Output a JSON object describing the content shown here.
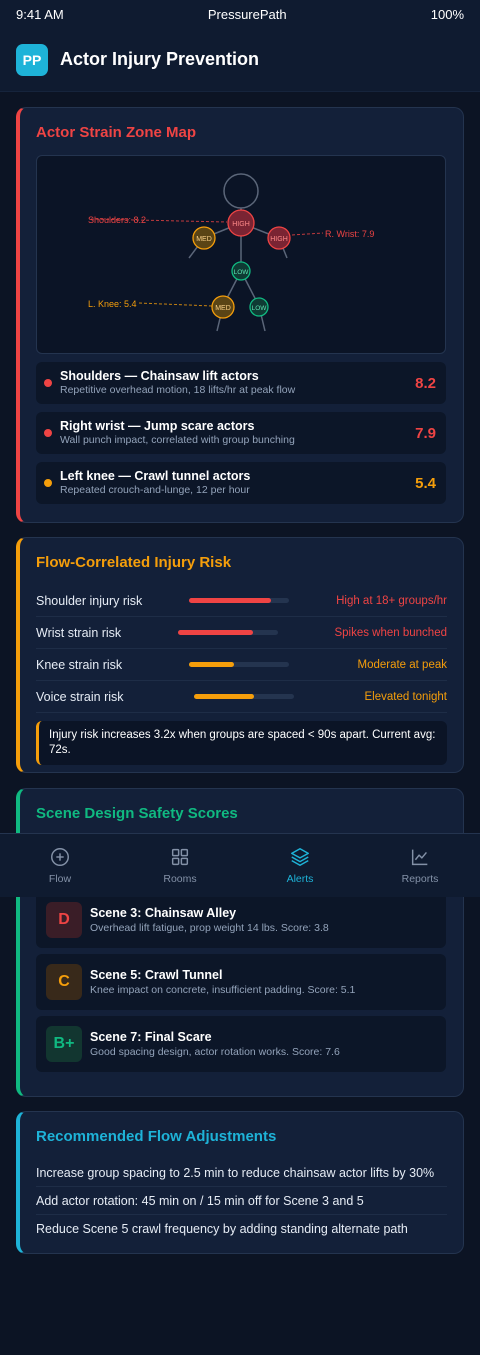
{
  "status_bar": {
    "time": "9:41 AM",
    "app": "PressurePath",
    "battery": "100%"
  },
  "header": {
    "logo": "PP",
    "title": "Actor Injury Prevention"
  },
  "strain_card": {
    "title": "Actor Strain Zone Map",
    "map_labels": {
      "shoulders": "Shoulders: 8.2",
      "wrist": "R. Wrist: 7.9",
      "knee": "L. Knee: 5.4",
      "high": "HIGH",
      "med": "MED",
      "low": "LOW"
    },
    "zones": [
      {
        "name": "Shoulders — Chainsaw lift actors",
        "desc": "Repetitive overhead motion, 18 lifts/hr at peak flow",
        "score": "8.2",
        "color": "#ef4444"
      },
      {
        "name": "Right wrist — Jump scare actors",
        "desc": "Wall punch impact, correlated with group bunching",
        "score": "7.9",
        "color": "#ef4444"
      },
      {
        "name": "Left knee — Crawl tunnel actors",
        "desc": "Repeated crouch-and-lunge, 12 per hour",
        "score": "5.4",
        "color": "#f59e0b"
      }
    ]
  },
  "flow_card": {
    "title": "Flow-Correlated Injury Risk",
    "risks": [
      {
        "label": "Shoulder injury risk",
        "level": 0.82,
        "note": "High at 18+ groups/hr",
        "color": "#ef4444"
      },
      {
        "label": "Wrist strain risk",
        "level": 0.75,
        "note": "Spikes when bunched",
        "color": "#ef4444"
      },
      {
        "label": "Knee strain risk",
        "level": 0.45,
        "note": "Moderate at peak",
        "color": "#f59e0b"
      },
      {
        "label": "Voice strain risk",
        "level": 0.6,
        "note": "Elevated tonight",
        "color": "#f59e0b"
      }
    ],
    "callout": "Injury risk increases 3.2x when groups are spaced < 90s apart. Current avg: 72s."
  },
  "scene_card": {
    "title": "Scene Design Safety Scores",
    "scenes": [
      {
        "grade": "D",
        "name": "Scene 3: Chainsaw Alley",
        "desc": "Overhead lift fatigue, prop weight 14 lbs. Score: 3.8",
        "color": "#ef4444",
        "bg": "#3a1d27"
      },
      {
        "grade": "C",
        "name": "Scene 5: Crawl Tunnel",
        "desc": "Knee impact on concrete, insufficient padding. Score: 5.1",
        "color": "#f59e0b",
        "bg": "#38291a"
      },
      {
        "grade": "B+",
        "name": "Scene 7: Final Scare",
        "desc": "Good spacing design, actor rotation works. Score: 7.6",
        "color": "#10b981",
        "bg": "#123630"
      }
    ]
  },
  "rec_card": {
    "title": "Recommended Flow Adjustments",
    "items": [
      "Increase group spacing to 2.5 min to reduce chainsaw actor lifts by 30%",
      "Add actor rotation: 45 min on / 15 min off for Scene 3 and 5",
      "Reduce Scene 5 crawl frequency by adding standing alternate path"
    ]
  },
  "tabs": [
    {
      "label": "Flow",
      "icon": "plus-circle-icon",
      "active": false
    },
    {
      "label": "Rooms",
      "icon": "grid-icon",
      "active": false
    },
    {
      "label": "Alerts",
      "icon": "layers-icon",
      "active": true
    },
    {
      "label": "Reports",
      "icon": "line-chart-icon",
      "active": false
    }
  ]
}
